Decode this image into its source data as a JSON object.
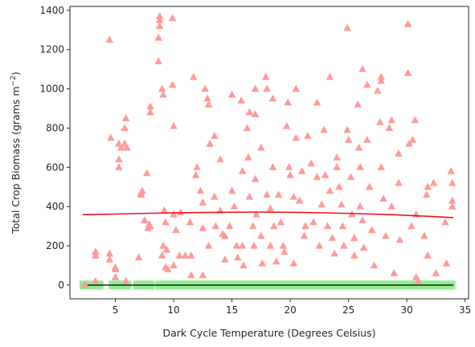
{
  "chart_data": {
    "type": "scatter",
    "title": "",
    "xlabel": "Dark Cycle Temperature (Degrees Celsius)",
    "ylabel_prefix": "Total Crop Biomass (grams m",
    "ylabel_sup": "−2",
    "ylabel_suffix": ")",
    "xlim": [
      1.1,
      35.3
    ],
    "ylim": [
      -70,
      1420
    ],
    "xticks": [
      5,
      10,
      15,
      20,
      25,
      30,
      35
    ],
    "yticks": [
      0,
      200,
      400,
      600,
      800,
      1000,
      1200,
      1400
    ],
    "grid": false,
    "colors": {
      "triangles": "#ff9b9b",
      "squares": "#90ee90",
      "trend": "#e8141a",
      "axis": "#262626"
    },
    "series": [
      {
        "marker": "triangle",
        "points": [
          [
            2.4,
            0
          ],
          [
            3.3,
            150
          ],
          [
            3.3,
            170
          ],
          [
            3.3,
            20
          ],
          [
            4.5,
            1250
          ],
          [
            4.6,
            750
          ],
          [
            4.5,
            160
          ],
          [
            4.5,
            130
          ],
          [
            5.0,
            80
          ],
          [
            5.0,
            40
          ],
          [
            5.0,
            90
          ],
          [
            5.3,
            600
          ],
          [
            5.3,
            640
          ],
          [
            5.3,
            720
          ],
          [
            5.5,
            700
          ],
          [
            5.8,
            720
          ],
          [
            5.8,
            800
          ],
          [
            5.9,
            850
          ],
          [
            6.0,
            700
          ],
          [
            5.9,
            20
          ],
          [
            7.0,
            140
          ],
          [
            7.2,
            470
          ],
          [
            7.2,
            460
          ],
          [
            7.3,
            480
          ],
          [
            7.5,
            330
          ],
          [
            7.8,
            290
          ],
          [
            7.7,
            570
          ],
          [
            8.0,
            880
          ],
          [
            8.0,
            910
          ],
          [
            7.9,
            310
          ],
          [
            8.0,
            300
          ],
          [
            8.7,
            1140
          ],
          [
            8.7,
            1260
          ],
          [
            8.8,
            1350
          ],
          [
            8.8,
            1370
          ],
          [
            8.8,
            1320
          ],
          [
            9.0,
            1000
          ],
          [
            9.1,
            970
          ],
          [
            9.2,
            380
          ],
          [
            9.3,
            320
          ],
          [
            9.1,
            200
          ],
          [
            9.0,
            150
          ],
          [
            9.5,
            80
          ],
          [
            9.3,
            90
          ],
          [
            9.4,
            180
          ],
          [
            9.9,
            1360
          ],
          [
            9.9,
            1020
          ],
          [
            10.0,
            810
          ],
          [
            10.0,
            360
          ],
          [
            10.2,
            280
          ],
          [
            10.0,
            100
          ],
          [
            10.6,
            370
          ],
          [
            10.5,
            150
          ],
          [
            11.0,
            150
          ],
          [
            11.5,
            150
          ],
          [
            11.5,
            50
          ],
          [
            11.4,
            320
          ],
          [
            11.7,
            1060
          ],
          [
            11.9,
            560
          ],
          [
            12.0,
            600
          ],
          [
            12.3,
            480
          ],
          [
            12.5,
            420
          ],
          [
            12.5,
            290
          ],
          [
            12.5,
            50
          ],
          [
            12.7,
            1000
          ],
          [
            12.9,
            950
          ],
          [
            13.0,
            920
          ],
          [
            13.1,
            720
          ],
          [
            13.0,
            200
          ],
          [
            13.5,
            760
          ],
          [
            13.5,
            450
          ],
          [
            13.6,
            300
          ],
          [
            14.0,
            640
          ],
          [
            14.0,
            380
          ],
          [
            14.2,
            260
          ],
          [
            14.4,
            250
          ],
          [
            14.4,
            130
          ],
          [
            14.8,
            300
          ],
          [
            15.0,
            970
          ],
          [
            15.0,
            480
          ],
          [
            15.2,
            400
          ],
          [
            15.4,
            200
          ],
          [
            15.5,
            140
          ],
          [
            15.8,
            940
          ],
          [
            15.9,
            580
          ],
          [
            15.9,
            200
          ],
          [
            16.0,
            100
          ],
          [
            16.3,
            800
          ],
          [
            16.4,
            650
          ],
          [
            16.5,
            450
          ],
          [
            16.5,
            880
          ],
          [
            16.8,
            300
          ],
          [
            16.9,
            200
          ],
          [
            17.0,
            1000
          ],
          [
            17.0,
            870
          ],
          [
            17.0,
            540
          ],
          [
            17.1,
            360
          ],
          [
            17.5,
            700
          ],
          [
            17.5,
            250
          ],
          [
            17.6,
            110
          ],
          [
            17.9,
            1060
          ],
          [
            18.0,
            1000
          ],
          [
            18.0,
            460
          ],
          [
            18.3,
            390
          ],
          [
            18.3,
            200
          ],
          [
            18.5,
            950
          ],
          [
            18.5,
            600
          ],
          [
            18.6,
            300
          ],
          [
            18.8,
            120
          ],
          [
            19.0,
            460
          ],
          [
            19.2,
            320
          ],
          [
            19.4,
            200
          ],
          [
            19.5,
            170
          ],
          [
            19.7,
            810
          ],
          [
            19.8,
            930
          ],
          [
            19.9,
            600
          ],
          [
            20.0,
            560
          ],
          [
            20.3,
            450
          ],
          [
            20.3,
            110
          ],
          [
            20.5,
            1000
          ],
          [
            20.5,
            750
          ],
          [
            20.8,
            430
          ],
          [
            21.0,
            580
          ],
          [
            21.2,
            250
          ],
          [
            21.3,
            300
          ],
          [
            21.5,
            760
          ],
          [
            21.8,
            620
          ],
          [
            22.0,
            320
          ],
          [
            22.3,
            930
          ],
          [
            22.3,
            550
          ],
          [
            22.5,
            200
          ],
          [
            22.7,
            410
          ],
          [
            22.9,
            790
          ],
          [
            23.0,
            560
          ],
          [
            23.2,
            300
          ],
          [
            23.4,
            1060
          ],
          [
            23.4,
            480
          ],
          [
            23.6,
            240
          ],
          [
            23.8,
            160
          ],
          [
            24.0,
            650
          ],
          [
            24.0,
            600
          ],
          [
            24.2,
            500
          ],
          [
            24.4,
            410
          ],
          [
            24.5,
            300
          ],
          [
            24.6,
            200
          ],
          [
            24.9,
            1310
          ],
          [
            24.9,
            790
          ],
          [
            25.0,
            740
          ],
          [
            25.2,
            550
          ],
          [
            25.3,
            360
          ],
          [
            25.5,
            240
          ],
          [
            25.5,
            150
          ],
          [
            25.8,
            920
          ],
          [
            25.9,
            700
          ],
          [
            26.0,
            600
          ],
          [
            26.0,
            400
          ],
          [
            26.2,
            1100
          ],
          [
            26.2,
            330
          ],
          [
            26.3,
            190
          ],
          [
            26.6,
            1020
          ],
          [
            26.6,
            740
          ],
          [
            26.8,
            500
          ],
          [
            27.0,
            280
          ],
          [
            27.2,
            100
          ],
          [
            27.5,
            990
          ],
          [
            27.7,
            830
          ],
          [
            27.8,
            1060
          ],
          [
            27.8,
            1040
          ],
          [
            27.8,
            600
          ],
          [
            28.0,
            440
          ],
          [
            28.2,
            250
          ],
          [
            28.5,
            800
          ],
          [
            28.7,
            840
          ],
          [
            28.7,
            400
          ],
          [
            28.9,
            60
          ],
          [
            29.3,
            670
          ],
          [
            29.3,
            520
          ],
          [
            29.4,
            230
          ],
          [
            30.1,
            1330
          ],
          [
            30.1,
            1080
          ],
          [
            30.2,
            720
          ],
          [
            30.4,
            300
          ],
          [
            30.5,
            740
          ],
          [
            30.7,
            840
          ],
          [
            30.8,
            360
          ],
          [
            30.8,
            40
          ],
          [
            31.0,
            20
          ],
          [
            31.5,
            250
          ],
          [
            31.7,
            460
          ],
          [
            31.8,
            500
          ],
          [
            31.8,
            150
          ],
          [
            32.3,
            520
          ],
          [
            32.5,
            60
          ],
          [
            33.3,
            320
          ],
          [
            33.4,
            110
          ],
          [
            33.8,
            580
          ],
          [
            33.9,
            430
          ],
          [
            33.9,
            400
          ],
          [
            33.9,
            520
          ]
        ]
      },
      {
        "marker": "square",
        "y": 0,
        "x": [
          2.3,
          2.6,
          3.3,
          3.6,
          4.8,
          5.1,
          5.4,
          6.0,
          6.9,
          7.2,
          7.4,
          7.7,
          8.0,
          8.8,
          9.1,
          9.4,
          9.7,
          10.0,
          10.3,
          10.6,
          10.9,
          11.2,
          11.5,
          11.8,
          12.1,
          12.4,
          12.7,
          13.0,
          13.3,
          13.6,
          13.9,
          14.2,
          14.5,
          14.8,
          15.1,
          15.4,
          15.7,
          16.0,
          16.3,
          16.6,
          16.9,
          17.2,
          17.5,
          17.8,
          18.1,
          18.4,
          18.7,
          19.0,
          19.3,
          19.6,
          19.9,
          20.2,
          20.5,
          20.8,
          21.1,
          21.4,
          21.7,
          22.0,
          22.3,
          22.6,
          22.9,
          23.2,
          23.5,
          23.8,
          24.1,
          24.4,
          24.7,
          25.0,
          25.3,
          25.6,
          25.9,
          26.2,
          26.5,
          26.8,
          27.1,
          27.4,
          27.7,
          28.0,
          28.3,
          28.6,
          28.9,
          29.2,
          29.5,
          29.8,
          30.1,
          30.4,
          30.7,
          31.0,
          31.3,
          31.6,
          31.9,
          32.2,
          32.5,
          32.8,
          33.3,
          33.8
        ]
      }
    ],
    "trend_line": {
      "x": [
        2.2,
        5,
        8,
        11,
        14,
        17,
        20,
        23,
        26,
        29,
        32,
        34
      ],
      "y": [
        359,
        362,
        366,
        369,
        371,
        372,
        371,
        368,
        364,
        358,
        350,
        344
      ]
    },
    "baseline": {
      "x": [
        2.2,
        34
      ],
      "y": 0
    }
  }
}
